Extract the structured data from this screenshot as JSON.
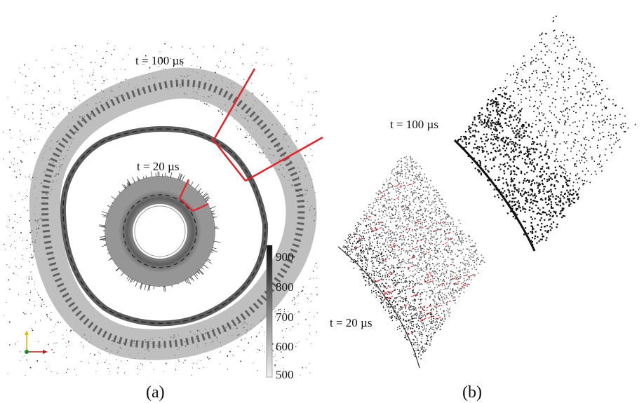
{
  "panel_a": {
    "caption": "(a)",
    "time_outer": "t = 100 µs",
    "time_inner": "t = 20 µs",
    "colorbar": {
      "ticks": [
        "900",
        "800",
        "700",
        "600",
        "500"
      ],
      "min": 500,
      "max": 900,
      "color_low": "#f2f2f2",
      "color_high": "#111111"
    },
    "axes_triad": "axes-triad-icon"
  },
  "panel_b": {
    "caption": "(b)",
    "time_upper": "t = 100 µs",
    "time_lower": "t = 20 µs"
  },
  "colors": {
    "highlight": "#e32227",
    "debris": "#111111",
    "band": "#666666"
  }
}
